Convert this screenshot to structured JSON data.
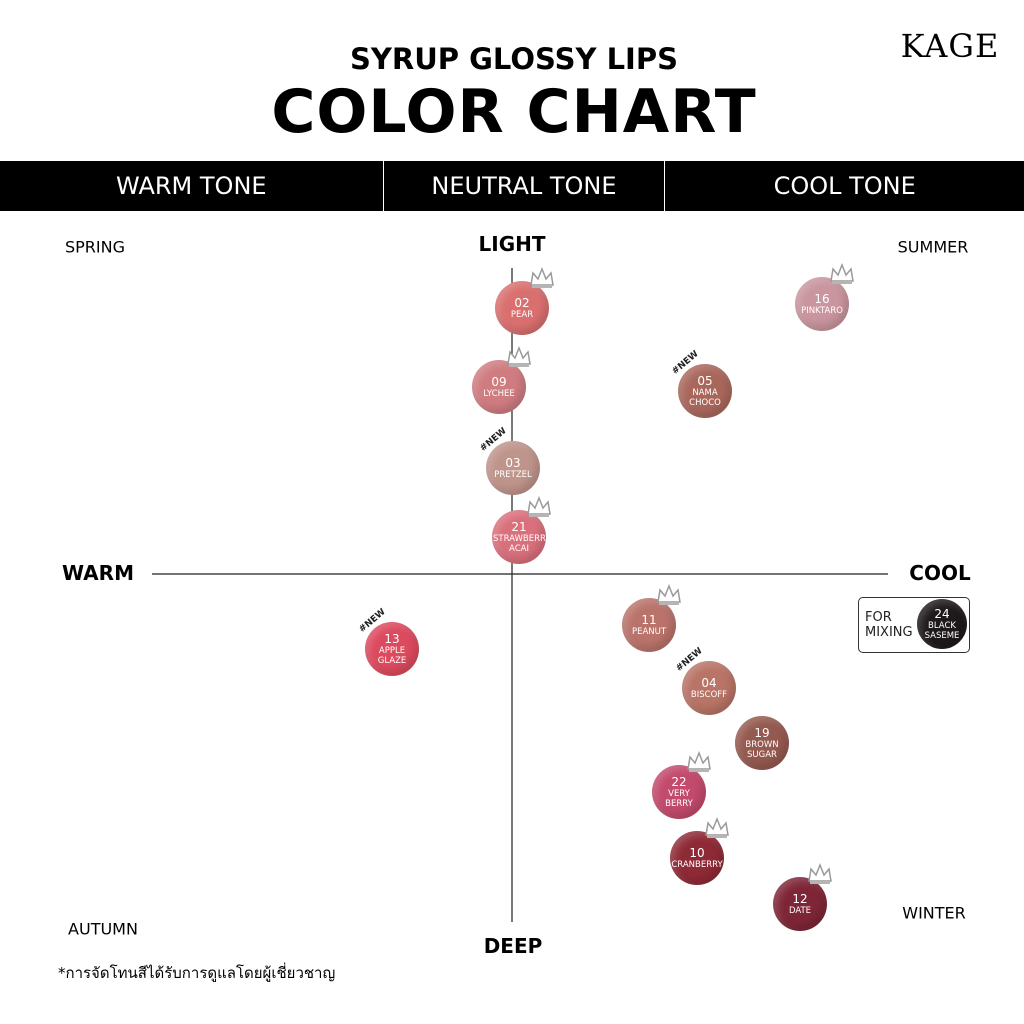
{
  "brand": "KAGE",
  "header": {
    "subtitle": "SYRUP GLOSSY LIPS",
    "title": "COLOR CHART"
  },
  "tones": [
    "WARM TONE",
    "NEUTRAL TONE",
    "COOL TONE"
  ],
  "axes": {
    "top": "LIGHT",
    "bottom": "DEEP",
    "left": "WARM",
    "right": "COOL"
  },
  "seasons": {
    "top_left": "SPRING",
    "top_right": "SUMMER",
    "bottom_left": "AUTUMN",
    "bottom_right": "WINTER"
  },
  "shades": [
    {
      "number": "02",
      "name": "PEAR",
      "color": "#d9706f",
      "crown": true
    },
    {
      "number": "09",
      "name": "LYCHEE",
      "color": "#cf7c80",
      "crown": true
    },
    {
      "number": "03",
      "name": "PRETZEL",
      "color": "#bf948b",
      "tag": "#NEW"
    },
    {
      "number": "21",
      "name": "STRAWBERRY ACAI",
      "color": "#d9707c",
      "crown": true
    },
    {
      "number": "16",
      "name": "PINKTARO",
      "color": "#c9959e",
      "crown": true
    },
    {
      "number": "05",
      "name": "NAMA CHOCO",
      "color": "#a9675c",
      "tag": "#NEW"
    },
    {
      "number": "13",
      "name": "APPLE GLAZE",
      "color": "#dc4a5e",
      "tag": "#NEW"
    },
    {
      "number": "11",
      "name": "PEANUT",
      "color": "#b9736b",
      "crown": true
    },
    {
      "number": "04",
      "name": "BISCOFF",
      "color": "#b87466",
      "tag": "#NEW"
    },
    {
      "number": "19",
      "name": "BROWN SUGAR",
      "color": "#94594f"
    },
    {
      "number": "22",
      "name": "VERY BERRY",
      "color": "#c24a6c",
      "crown": true
    },
    {
      "number": "10",
      "name": "CRANBERRY",
      "color": "#8e2a36",
      "crown": true
    },
    {
      "number": "12",
      "name": "DATE",
      "color": "#7e2637",
      "crown": true
    }
  ],
  "mixing": {
    "label": "FOR MIXING",
    "number": "24",
    "name": "BLACK SASEME",
    "color": "#1e1a1c"
  },
  "footnote": "*การจัดโทนสีได้รับการดูแลโดยผู้เชี่ยวชาญ"
}
